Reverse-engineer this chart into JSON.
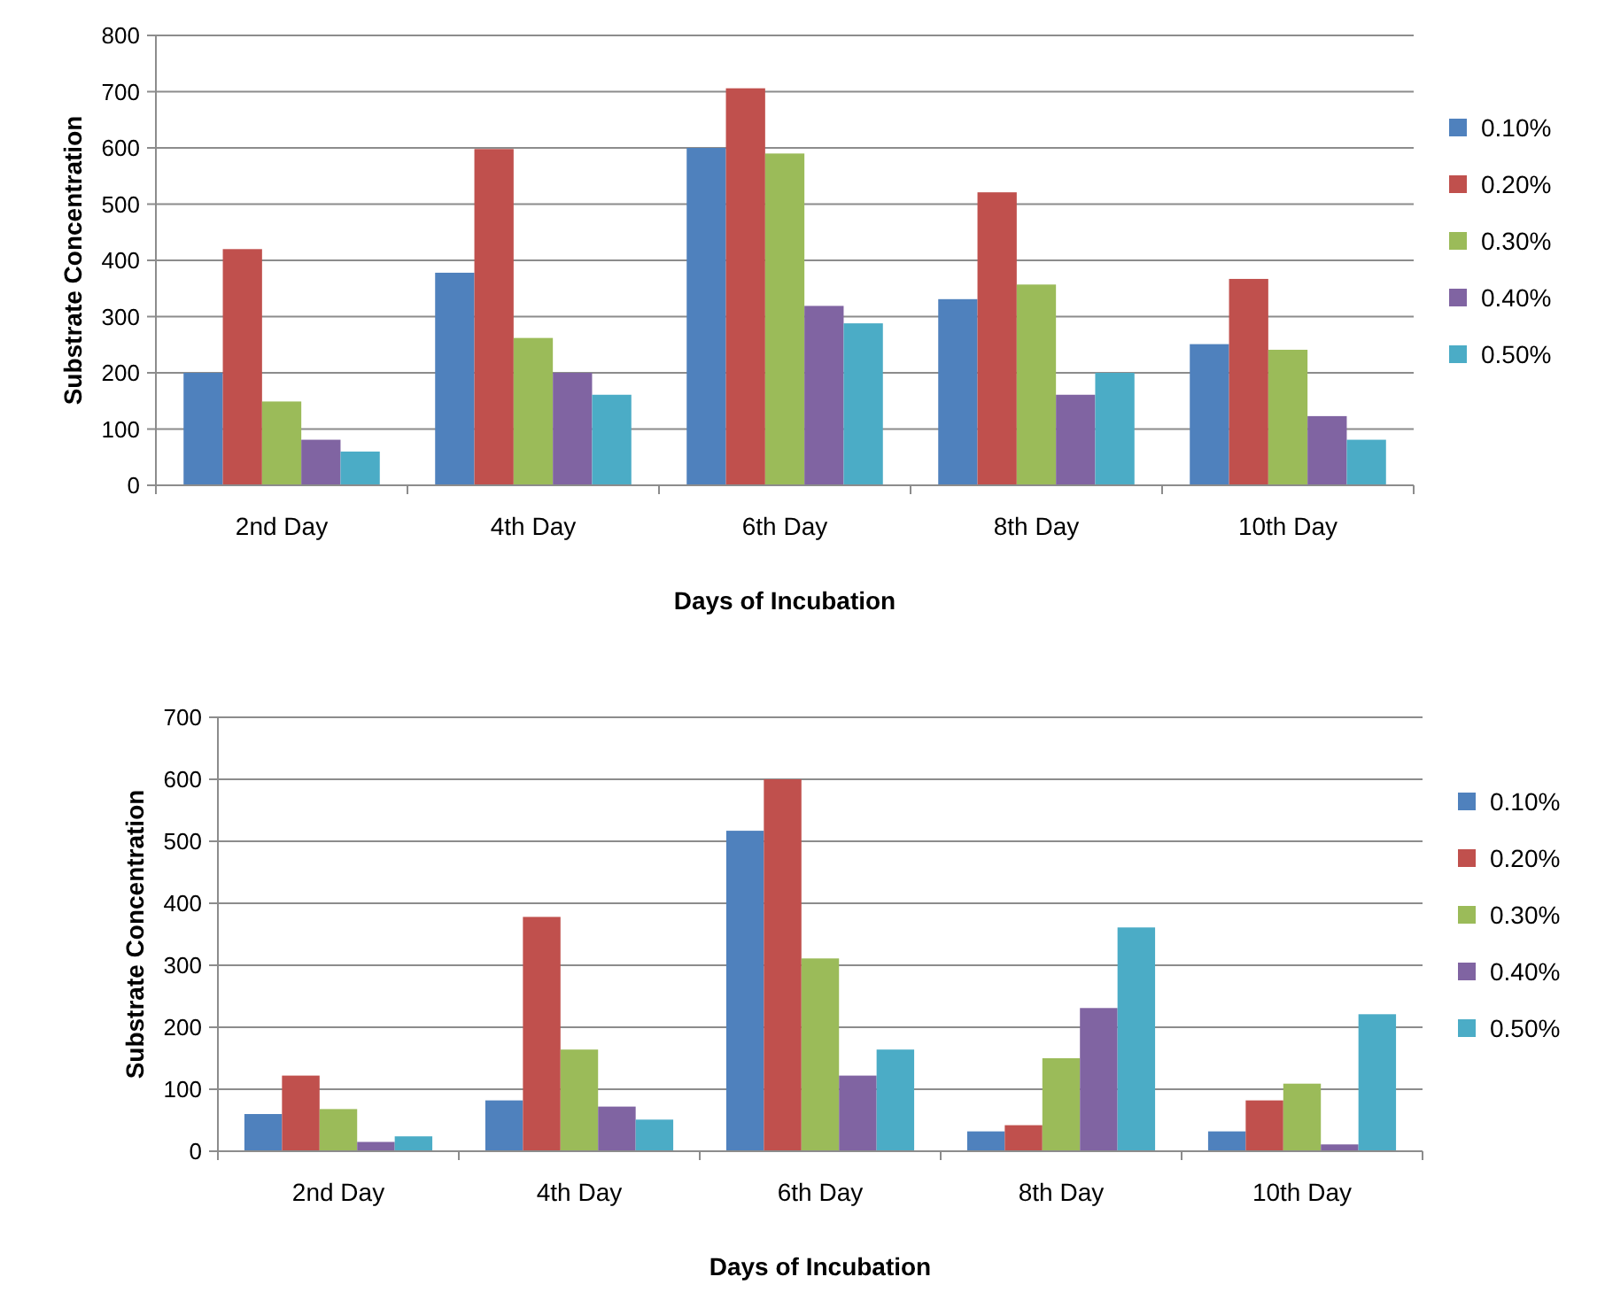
{
  "chart_data": [
    {
      "type": "bar",
      "xlabel": "Days of Incubation",
      "ylabel": "Substrate Concentration",
      "categories": [
        "2nd Day",
        "4th Day",
        "6th Day",
        "8th Day",
        "10th Day"
      ],
      "series": [
        {
          "name": "0.10%",
          "color": "#4f81bd",
          "values": [
            200,
            378,
            600,
            331,
            251
          ]
        },
        {
          "name": "0.20%",
          "color": "#c0504d",
          "values": [
            420,
            598,
            706,
            521,
            367
          ]
        },
        {
          "name": "0.30%",
          "color": "#9bbb59",
          "values": [
            149,
            262,
            590,
            357,
            241
          ]
        },
        {
          "name": "0.40%",
          "color": "#8064a2",
          "values": [
            81,
            200,
            319,
            161,
            123
          ]
        },
        {
          "name": "0.50%",
          "color": "#4bacc6",
          "values": [
            60,
            161,
            288,
            200,
            81
          ]
        }
      ],
      "ylim": [
        0,
        800
      ],
      "yticks": [
        0,
        100,
        200,
        300,
        400,
        500,
        600,
        700,
        800
      ],
      "grid": "y",
      "legend": "right"
    },
    {
      "type": "bar",
      "xlabel": "Days of Incubation",
      "ylabel": "Substrate Concentration",
      "categories": [
        "2nd Day",
        "4th Day",
        "6th Day",
        "8th Day",
        "10th Day"
      ],
      "series": [
        {
          "name": "0.10%",
          "color": "#4f81bd",
          "values": [
            60,
            82,
            517,
            32,
            32
          ]
        },
        {
          "name": "0.20%",
          "color": "#c0504d",
          "values": [
            122,
            378,
            600,
            42,
            82
          ]
        },
        {
          "name": "0.30%",
          "color": "#9bbb59",
          "values": [
            68,
            164,
            311,
            150,
            109
          ]
        },
        {
          "name": "0.40%",
          "color": "#8064a2",
          "values": [
            15,
            72,
            122,
            231,
            11
          ]
        },
        {
          "name": "0.50%",
          "color": "#4bacc6",
          "values": [
            24,
            51,
            164,
            361,
            221
          ]
        }
      ],
      "ylim": [
        0,
        700
      ],
      "yticks": [
        0,
        100,
        200,
        300,
        400,
        500,
        600,
        700
      ],
      "grid": "y",
      "legend": "right"
    }
  ]
}
